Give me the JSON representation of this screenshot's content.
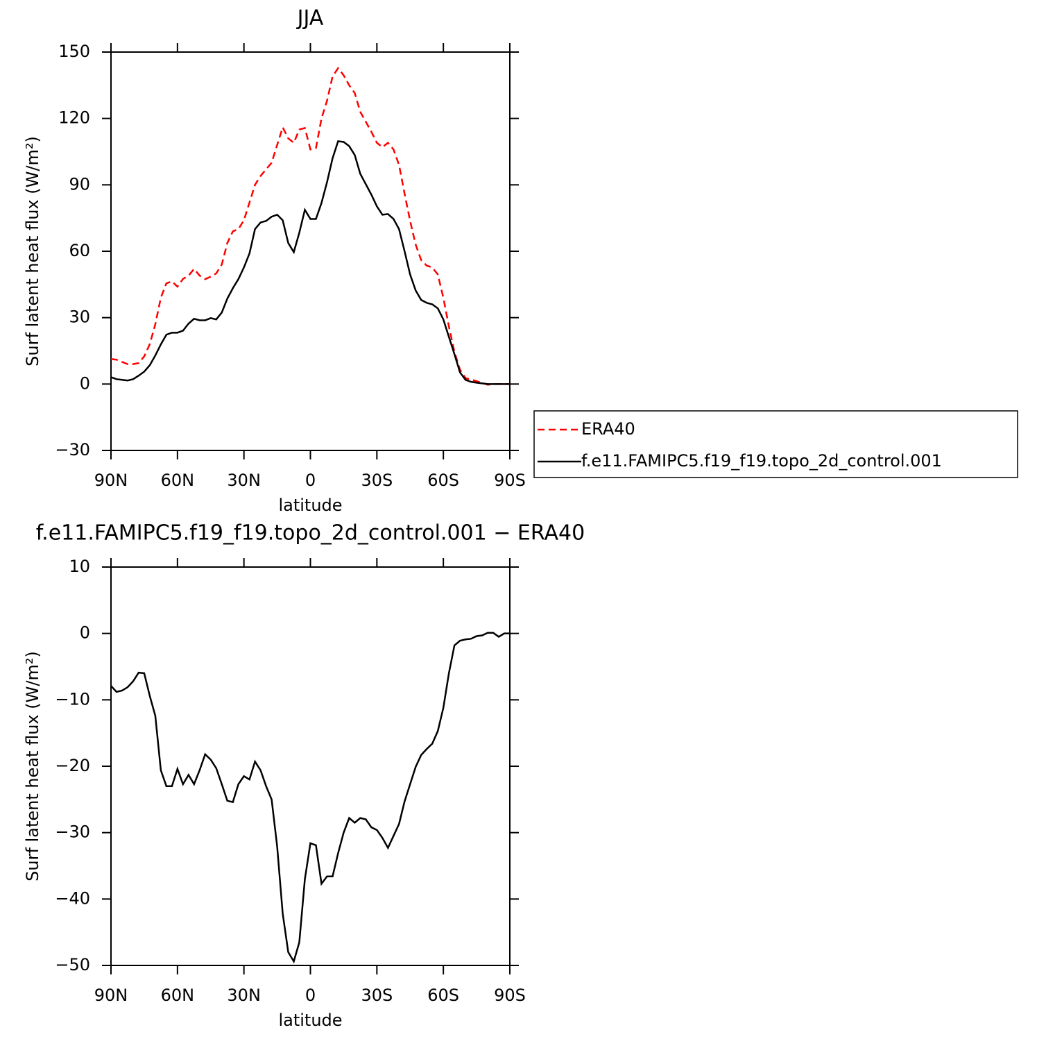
{
  "chart_data": [
    {
      "type": "line",
      "title": "JJA",
      "x_label": "latitude",
      "y_label": "Surf latent heat flux (W/m²)",
      "x": [
        90,
        87.5,
        85,
        82.5,
        80,
        77.5,
        75,
        72.5,
        70,
        67.5,
        65,
        62.5,
        60,
        57.5,
        55,
        52.5,
        50,
        47.5,
        45,
        42.5,
        40,
        37.5,
        35,
        32.5,
        30,
        27.5,
        25,
        22.5,
        20,
        17.5,
        15,
        12.5,
        10,
        7.5,
        5,
        2.5,
        0,
        -2.5,
        -5,
        -7.5,
        -10,
        -12.5,
        -15,
        -17.5,
        -20,
        -22.5,
        -25,
        -27.5,
        -30,
        -32.5,
        -35,
        -37.5,
        -40,
        -42.5,
        -45,
        -47.5,
        -50,
        -52.5,
        -55,
        -57.5,
        -60,
        -62.5,
        -65,
        -67.5,
        -70,
        -72.5,
        -75,
        -77.5,
        -80,
        -82.5,
        -85,
        -87.5,
        -90
      ],
      "series": [
        {
          "name": "ERA40",
          "color": "#ff0000",
          "dashed": true,
          "values": [
            11.3,
            11,
            10,
            9,
            9,
            9.5,
            12.5,
            18,
            27,
            39,
            45.5,
            46.4,
            44,
            47.5,
            49,
            52,
            49,
            47.4,
            48.5,
            50,
            54,
            63.7,
            69,
            70,
            74,
            82,
            90,
            94,
            97,
            100,
            108,
            116,
            111,
            109,
            115,
            115.7,
            106,
            106.6,
            120,
            128,
            139,
            142.7,
            139.5,
            135,
            131.5,
            123,
            118.5,
            114,
            109,
            107,
            109,
            106,
            99,
            86,
            73.7,
            63,
            56,
            53.5,
            52.7,
            49.5,
            39,
            26,
            14.5,
            6.5,
            2.7,
            2,
            1.3,
            0.6,
            -0.3,
            0,
            0,
            0,
            0
          ]
        },
        {
          "name": "f.e11.FAMIPC5.f19_f19.topo_2d_control.001",
          "color": "#000000",
          "dashed": false,
          "values": [
            3.1,
            2.2,
            1.9,
            1.6,
            2.2,
            3.8,
            5.6,
            8.5,
            12.9,
            17.9,
            22.3,
            23.2,
            23.2,
            24.1,
            27.3,
            29.5,
            28.8,
            28.8,
            29.8,
            29.2,
            32.3,
            38.6,
            43.3,
            47.4,
            52.7,
            59,
            70,
            73,
            73.7,
            75.6,
            76.5,
            74,
            63.7,
            59.6,
            68.4,
            78.7,
            74.6,
            74.6,
            81.8,
            91.2,
            102,
            109.7,
            109.4,
            107.5,
            103.5,
            95,
            90.3,
            85.6,
            80.3,
            76.5,
            76.8,
            74.6,
            70,
            60,
            49.5,
            42.3,
            38,
            36.7,
            36,
            34.2,
            29.2,
            21.3,
            13.5,
            5.3,
            1.9,
            1,
            0.6,
            0.3,
            0,
            0,
            0,
            0,
            0
          ]
        }
      ],
      "xlim": [
        90,
        -90
      ],
      "xticks": [
        {
          "value": 90,
          "label": "90N"
        },
        {
          "value": 60,
          "label": "60N"
        },
        {
          "value": 30,
          "label": "30N"
        },
        0,
        {
          "value": -30,
          "label": "30S"
        },
        {
          "value": -60,
          "label": "60S"
        },
        {
          "value": -90,
          "label": "90S"
        }
      ],
      "ylim": [
        -30,
        150
      ],
      "yticks": [
        {
          "value": -30,
          "label": "−30"
        },
        0,
        30,
        60,
        90,
        120,
        150
      ],
      "legend": "right"
    },
    {
      "type": "line",
      "title": "f.e11.FAMIPC5.f19_f19.topo_2d_control.001 − ERA40",
      "x_label": "latitude",
      "y_label": "Surf latent heat flux (W/m²)",
      "x": [
        90,
        87.5,
        85,
        82.5,
        80,
        77.5,
        75,
        72.5,
        70,
        67.5,
        65,
        62.5,
        60,
        57.5,
        55,
        52.5,
        50,
        47.5,
        45,
        42.5,
        40,
        37.5,
        35,
        32.5,
        30,
        27.5,
        25,
        22.5,
        20,
        17.5,
        15,
        12.5,
        10,
        7.5,
        5,
        2.5,
        0,
        -2.5,
        -5,
        -7.5,
        -10,
        -12.5,
        -15,
        -17.5,
        -20,
        -22.5,
        -25,
        -27.5,
        -30,
        -32.5,
        -35,
        -37.5,
        -40,
        -42.5,
        -45,
        -47.5,
        -50,
        -52.5,
        -55,
        -57.5,
        -60,
        -62.5,
        -65,
        -67.5,
        -70,
        -72.5,
        -75,
        -77.5,
        -80,
        -82.5,
        -85,
        -87.5,
        -90
      ],
      "series": [
        {
          "color": "#000000",
          "dashed": false,
          "values": [
            -7.9,
            -8.8,
            -8.6,
            -8.1,
            -7.2,
            -5.9,
            -6,
            -9.4,
            -12.4,
            -20.6,
            -23,
            -23,
            -20.4,
            -22.7,
            -21.3,
            -22.7,
            -20.6,
            -18.2,
            -19,
            -20.3,
            -22.7,
            -25.2,
            -25.4,
            -22.7,
            -21.5,
            -22,
            -19.3,
            -20.6,
            -23,
            -25,
            -32.1,
            -42.2,
            -48,
            -49.4,
            -46.5,
            -37,
            -31.6,
            -31.9,
            -37.7,
            -36.6,
            -36.6,
            -33.1,
            -30,
            -27.8,
            -28.5,
            -27.8,
            -28,
            -29.2,
            -29.6,
            -30.8,
            -32.3,
            -30.5,
            -28.7,
            -25.3,
            -22.7,
            -20.1,
            -18.3,
            -17.4,
            -16.6,
            -14.7,
            -11.2,
            -6,
            -1.8,
            -1.1,
            -0.9,
            -0.8,
            -0.4,
            -0.3,
            0.1,
            0.1,
            -0.5,
            0,
            0
          ]
        }
      ],
      "xlim": [
        90,
        -90
      ],
      "xticks": [
        {
          "value": 90,
          "label": "90N"
        },
        {
          "value": 60,
          "label": "60N"
        },
        {
          "value": 30,
          "label": "30N"
        },
        0,
        {
          "value": -30,
          "label": "30S"
        },
        {
          "value": -60,
          "label": "60S"
        },
        {
          "value": -90,
          "label": "90S"
        }
      ],
      "ylim": [
        -50,
        10
      ],
      "yticks": [
        {
          "value": -50,
          "label": "−50"
        },
        {
          "value": -40,
          "label": "−40"
        },
        {
          "value": -30,
          "label": "−30"
        },
        {
          "value": -20,
          "label": "−20"
        },
        {
          "value": -10,
          "label": "−10"
        },
        0,
        10
      ]
    }
  ]
}
